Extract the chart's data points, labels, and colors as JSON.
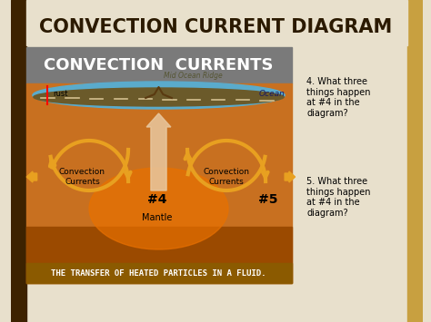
{
  "title": "CONVECTION CURRENT DIAGRAM",
  "subtitle": "CONVECTION  CURRENTS",
  "subtitle2": "Mid Ocean Ridge",
  "label_rust": "rust",
  "label_ocean": "Ocean",
  "label_mantle": "Mantle",
  "label_num4": "#4",
  "label_num5": "#5",
  "label_conv_left": "Convection\nCurrents",
  "label_conv_right": "Convection\nCurrents",
  "footer": "THE TRANSFER OF HEATED PARTICLES IN A FLUID.",
  "q4_text": "4. What three\nthings happen\nat #4 in the\ndiagram?",
  "q5_text": "5. What three\nthings happen\nat #4 in the\ndiagram?",
  "bg_color": "#e8e0cc",
  "title_color": "#2b1a00",
  "diagram_bg": "#c87020",
  "diagram_border": "#8B5A00",
  "gray_header_bg": "#7a7a7a",
  "footer_bg": "#8B5A00",
  "ocean_color": "#5aabcc",
  "crust_color": "#6b5a2a",
  "arrow_color": "#e8a020",
  "up_arrow_color": "#e8c8a0",
  "right_sidebar_bg": "#f0ece0",
  "left_bar_color": "#3d2200",
  "right_bar_color": "#c8a040"
}
